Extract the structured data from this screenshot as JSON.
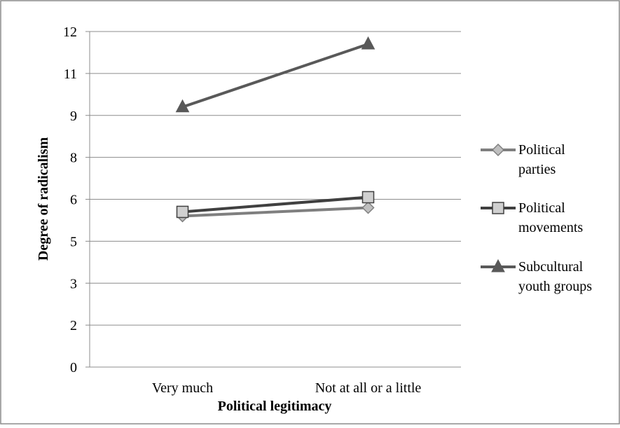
{
  "chart_data": {
    "type": "line",
    "categories": [
      "Very much",
      "Not at all or a little"
    ],
    "series": [
      {
        "name": "Political parties",
        "values": [
          5.6,
          5.8
        ],
        "marker": "diamond",
        "color": "#7f7f7f"
      },
      {
        "name": "Political movements",
        "values": [
          5.7,
          6.1
        ],
        "marker": "square",
        "color": "#404040"
      },
      {
        "name": "Subcultural youth groups",
        "values": [
          9.4,
          11.7
        ],
        "marker": "triangle",
        "color": "#595959"
      }
    ],
    "xlabel": "Political legitimacy",
    "ylabel": "Degree of radicalism",
    "ylim": [
      0,
      12
    ],
    "yticks": [
      0,
      2,
      3,
      5,
      6,
      8,
      9,
      11,
      12
    ],
    "grid": true,
    "legend_position": "right"
  }
}
